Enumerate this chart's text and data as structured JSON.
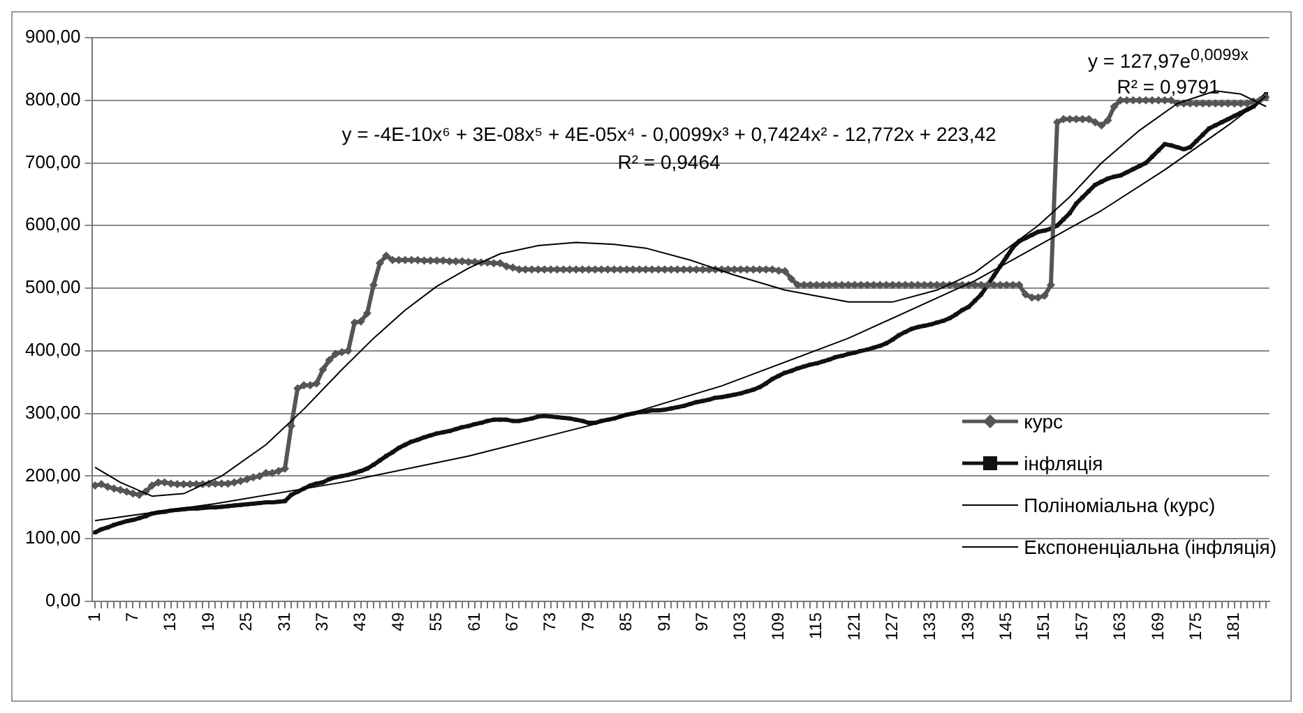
{
  "chart_data": {
    "type": "line",
    "categories": [
      "1",
      null,
      null,
      null,
      null,
      null,
      "7",
      null,
      null,
      null,
      null,
      null,
      "13",
      null,
      null,
      null,
      null,
      null,
      "19",
      null,
      null,
      null,
      null,
      null,
      "25",
      null,
      null,
      null,
      null,
      null,
      "31",
      null,
      null,
      null,
      null,
      null,
      "37",
      null,
      null,
      null,
      null,
      null,
      "43",
      null,
      null,
      null,
      null,
      null,
      "49",
      null,
      null,
      null,
      null,
      null,
      "55",
      null,
      null,
      null,
      null,
      null,
      "61",
      null,
      null,
      null,
      null,
      null,
      "67",
      null,
      null,
      null,
      null,
      null,
      "73",
      null,
      null,
      null,
      null,
      null,
      "79",
      null,
      null,
      null,
      null,
      null,
      "85",
      null,
      null,
      null,
      null,
      null,
      "91",
      null,
      null,
      null,
      null,
      null,
      "97",
      null,
      null,
      null,
      null,
      null,
      "103",
      null,
      null,
      null,
      null,
      null,
      "109",
      null,
      null,
      null,
      null,
      null,
      "115",
      null,
      null,
      null,
      null,
      null,
      "121",
      null,
      null,
      null,
      null,
      null,
      "127",
      null,
      null,
      null,
      null,
      null,
      "133",
      null,
      null,
      null,
      null,
      null,
      "139",
      null,
      null,
      null,
      null,
      null,
      "145",
      null,
      null,
      null,
      null,
      null,
      "151",
      null,
      null,
      null,
      null,
      null,
      "157",
      null,
      null,
      null,
      null,
      null,
      "163",
      null,
      null,
      null,
      null,
      null,
      "169",
      null,
      null,
      null,
      null,
      null,
      "175",
      null,
      null,
      null,
      null,
      null,
      "181",
      null,
      null,
      null,
      null,
      null
    ],
    "series": [
      {
        "name": "курс",
        "color": "#555555",
        "marker": "diamond",
        "values": [
          185,
          187,
          183,
          180,
          178,
          175,
          172,
          170,
          175,
          185,
          190,
          190,
          188,
          187,
          187,
          187,
          187,
          187,
          188,
          188,
          188,
          188,
          190,
          192,
          195,
          198,
          200,
          205,
          205,
          208,
          212,
          280,
          340,
          345,
          345,
          348,
          370,
          385,
          395,
          398,
          400,
          445,
          447,
          460,
          505,
          540,
          552,
          545,
          545,
          545,
          545,
          545,
          544,
          544,
          544,
          544,
          543,
          543,
          543,
          542,
          542,
          541,
          541,
          540,
          540,
          535,
          533,
          530,
          530,
          530,
          530,
          530,
          530,
          530,
          530,
          530,
          530,
          530,
          530,
          530,
          530,
          530,
          530,
          530,
          530,
          530,
          530,
          530,
          530,
          530,
          530,
          530,
          530,
          530,
          530,
          530,
          530,
          530,
          530,
          530,
          530,
          530,
          530,
          530,
          530,
          530,
          530,
          530,
          528,
          527,
          515,
          505,
          505,
          505,
          505,
          505,
          505,
          505,
          505,
          505,
          505,
          505,
          505,
          505,
          505,
          505,
          505,
          505,
          505,
          505,
          505,
          505,
          505,
          505,
          505,
          505,
          505,
          505,
          505,
          505,
          505,
          505,
          505,
          505,
          505,
          505,
          505,
          490,
          485,
          485,
          488,
          505,
          765,
          770,
          770,
          770,
          770,
          770,
          765,
          760,
          768,
          790,
          800,
          800,
          800,
          800,
          800,
          800,
          800,
          800,
          800,
          795,
          795,
          795,
          795,
          795,
          795,
          795,
          795,
          795,
          795,
          795,
          795,
          798,
          800,
          805
        ]
      },
      {
        "name": "інфляція",
        "color": "#111111",
        "marker": "square",
        "values": [
          110,
          115,
          118,
          122,
          125,
          128,
          130,
          133,
          136,
          140,
          142,
          143,
          145,
          146,
          147,
          148,
          148,
          149,
          150,
          150,
          151,
          152,
          153,
          154,
          155,
          156,
          157,
          158,
          158,
          159,
          160,
          170,
          175,
          180,
          185,
          188,
          190,
          195,
          198,
          200,
          202,
          205,
          208,
          212,
          218,
          225,
          232,
          238,
          245,
          250,
          255,
          258,
          262,
          265,
          268,
          270,
          272,
          275,
          278,
          280,
          283,
          285,
          288,
          290,
          290,
          290,
          288,
          288,
          290,
          292,
          295,
          296,
          295,
          294,
          293,
          292,
          290,
          288,
          285,
          285,
          288,
          290,
          292,
          295,
          298,
          300,
          302,
          303,
          305,
          305,
          306,
          308,
          310,
          312,
          315,
          318,
          320,
          322,
          325,
          326,
          328,
          330,
          332,
          335,
          338,
          342,
          348,
          355,
          360,
          365,
          368,
          372,
          375,
          378,
          380,
          383,
          386,
          390,
          392,
          395,
          397,
          400,
          402,
          405,
          408,
          412,
          418,
          425,
          430,
          435,
          438,
          440,
          442,
          445,
          448,
          452,
          458,
          465,
          470,
          480,
          490,
          505,
          520,
          535,
          550,
          565,
          575,
          580,
          585,
          590,
          592,
          595,
          600,
          610,
          620,
          635,
          645,
          655,
          665,
          670,
          675,
          678,
          680,
          685,
          690,
          695,
          700,
          710,
          720,
          730,
          728,
          725,
          722,
          725,
          735,
          745,
          755,
          760,
          765,
          770,
          775,
          780,
          785,
          790,
          800,
          810
        ]
      },
      {
        "name": "Поліноміальна (курс)",
        "type": "line",
        "color": "#000000",
        "marker": "none",
        "values": [
          214,
          null,
          null,
          null,
          190,
          null,
          null,
          null,
          null,
          168,
          null,
          null,
          null,
          null,
          172,
          null,
          null,
          null,
          null,
          null,
          200,
          null,
          null,
          null,
          null,
          null,
          null,
          250,
          null,
          null,
          null,
          null,
          null,
          307,
          null,
          null,
          null,
          null,
          null,
          370,
          null,
          null,
          null,
          null,
          420,
          null,
          null,
          null,
          null,
          465,
          null,
          null,
          null,
          null,
          503,
          null,
          null,
          null,
          null,
          532,
          null,
          null,
          null,
          null,
          555,
          null,
          null,
          null,
          null,
          null,
          568,
          null,
          null,
          null,
          null,
          null,
          573,
          null,
          null,
          null,
          null,
          null,
          570,
          null,
          null,
          null,
          null,
          564,
          null,
          null,
          null,
          null,
          null,
          null,
          545,
          null,
          null,
          null,
          null,
          null,
          null,
          521,
          null,
          null,
          null,
          null,
          null,
          null,
          null,
          497,
          null,
          null,
          null,
          null,
          null,
          null,
          null,
          null,
          null,
          478,
          null,
          null,
          null,
          null,
          null,
          null,
          478,
          null,
          null,
          null,
          null,
          null,
          null,
          497,
          null,
          null,
          null,
          null,
          null,
          525,
          null,
          null,
          null,
          555,
          null,
          null,
          null,
          null,
          null,
          600,
          null,
          null,
          null,
          null,
          646,
          null,
          null,
          null,
          null,
          700,
          null,
          null,
          null,
          null,
          null,
          752,
          null,
          null,
          null,
          null,
          null,
          795,
          null,
          null,
          null,
          null,
          null,
          815,
          null,
          null,
          null,
          810,
          null,
          null,
          null,
          790
        ]
      },
      {
        "name": "Експоненціальна (інфляція)",
        "type": "line",
        "color": "#000000",
        "marker": "none",
        "values": [
          129,
          null,
          null,
          null,
          null,
          null,
          null,
          null,
          null,
          null,
          null,
          null,
          null,
          null,
          null,
          null,
          null,
          null,
          null,
          156,
          null,
          null,
          null,
          null,
          null,
          null,
          null,
          null,
          null,
          null,
          null,
          null,
          null,
          null,
          null,
          null,
          null,
          null,
          null,
          190,
          null,
          null,
          null,
          null,
          null,
          null,
          null,
          null,
          null,
          null,
          null,
          null,
          null,
          null,
          null,
          null,
          null,
          null,
          null,
          232,
          null,
          null,
          null,
          null,
          null,
          null,
          null,
          null,
          null,
          null,
          null,
          null,
          null,
          null,
          null,
          null,
          null,
          null,
          null,
          283,
          null,
          null,
          null,
          null,
          null,
          null,
          null,
          null,
          null,
          null,
          null,
          null,
          null,
          null,
          null,
          null,
          null,
          null,
          null,
          344,
          null,
          null,
          null,
          null,
          null,
          null,
          null,
          null,
          null,
          null,
          null,
          null,
          null,
          null,
          null,
          null,
          null,
          null,
          null,
          420,
          null,
          null,
          null,
          null,
          null,
          null,
          null,
          null,
          null,
          null,
          null,
          null,
          null,
          null,
          null,
          null,
          null,
          null,
          null,
          512,
          null,
          null,
          null,
          null,
          null,
          null,
          null,
          null,
          null,
          null,
          null,
          null,
          null,
          null,
          null,
          null,
          null,
          null,
          null,
          624,
          null,
          null,
          null,
          null,
          null,
          null,
          null,
          null,
          null,
          689,
          null,
          null,
          null,
          null,
          null,
          null,
          null,
          null,
          null,
          760,
          null,
          null,
          null,
          null,
          null,
          807
        ]
      }
    ],
    "ylim": [
      0,
      900
    ],
    "yticks": [
      {
        "value": 0,
        "label": "0,00"
      },
      {
        "value": 100,
        "label": "100,00"
      },
      {
        "value": 200,
        "label": "200,00"
      },
      {
        "value": 300,
        "label": "300,00"
      },
      {
        "value": 400,
        "label": "400,00"
      },
      {
        "value": 500,
        "label": "500,00"
      },
      {
        "value": 600,
        "label": "600,00"
      },
      {
        "value": 700,
        "label": "700,00"
      },
      {
        "value": 800,
        "label": "800,00"
      },
      {
        "value": 900,
        "label": "900,00"
      }
    ],
    "grid": "y",
    "legend": "right",
    "annotations": [
      "y = -4E-10x⁶ + 3E-08x⁵ + 4E-05x⁴ - 0,0099x³ + 0,7424x² - 12,772x + 223,42",
      "R² = 0,9464",
      "y = 127,97e$^{0,0099x}$",
      "R² = 0,9791"
    ]
  }
}
